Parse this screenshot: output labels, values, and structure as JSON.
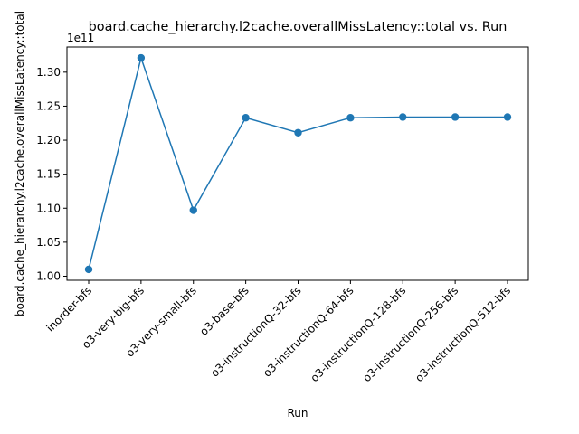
{
  "chart_data": {
    "type": "line",
    "title": "board.cache_hierarchy.l2cache.overallMissLatency::total vs. Run",
    "xlabel": "Run",
    "ylabel": "board.cache_hierarchy.l2cache.overallMissLatency::total",
    "offset_label": "1e11",
    "categories": [
      "inorder-bfs",
      "o3-very-big-bfs",
      "o3-very-small-bfs",
      "o3-base-bfs",
      "o3-instructionQ-32-bfs",
      "o3-instructionQ-64-bfs",
      "o3-instructionQ-128-bfs",
      "o3-instructionQ-256-bfs",
      "o3-instructionQ-512-bfs"
    ],
    "values": [
      1.01,
      1.321,
      1.097,
      1.233,
      1.211,
      1.233,
      1.234,
      1.234,
      1.234
    ],
    "value_multiplier": "1e11",
    "yticks": [
      "1.00",
      "1.05",
      "1.10",
      "1.15",
      "1.20",
      "1.25",
      "1.30"
    ],
    "ylim": [
      0.994,
      1.337
    ],
    "grid": false,
    "marker": "circle",
    "color": "#1f77b4"
  }
}
